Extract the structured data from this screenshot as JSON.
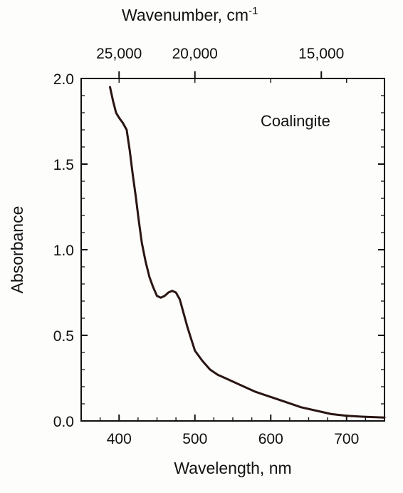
{
  "chart_data": {
    "type": "line",
    "title": "",
    "xlabel": "Wavelength, nm",
    "ylabel": "Absorbance",
    "x2label": "Wavenumber, cm",
    "x2label_superscript": "-1",
    "annotation": "Coalingite",
    "xlim": [
      350,
      750
    ],
    "ylim": [
      0.0,
      2.0
    ],
    "x_ticks": [
      400,
      500,
      600,
      700
    ],
    "x_tick_labels": [
      "400",
      "500",
      "600",
      "700"
    ],
    "y_ticks": [
      0.0,
      0.5,
      1.0,
      1.5,
      2.0
    ],
    "y_tick_labels": [
      "0.0",
      "0.5",
      "1.0",
      "1.5",
      "2.0"
    ],
    "x2_ticks_wavenumber": [
      25000,
      20000,
      15000
    ],
    "x2_tick_labels": [
      "25,000",
      "20,000",
      "15,000"
    ],
    "grid": false,
    "series": [
      {
        "x": [
          388,
          392,
          396,
          400,
          405,
          410,
          414,
          418,
          422,
          426,
          430,
          435,
          440,
          445,
          450,
          455,
          460,
          465,
          470,
          475,
          480,
          485,
          490,
          495,
          500,
          510,
          520,
          530,
          540,
          560,
          580,
          600,
          620,
          640,
          660,
          680,
          700,
          720,
          750
        ],
        "y": [
          1.95,
          1.87,
          1.8,
          1.77,
          1.74,
          1.7,
          1.58,
          1.44,
          1.31,
          1.17,
          1.04,
          0.93,
          0.84,
          0.78,
          0.73,
          0.72,
          0.73,
          0.75,
          0.76,
          0.75,
          0.71,
          0.63,
          0.55,
          0.48,
          0.41,
          0.35,
          0.3,
          0.27,
          0.25,
          0.21,
          0.17,
          0.14,
          0.11,
          0.08,
          0.06,
          0.04,
          0.03,
          0.025,
          0.02
        ]
      }
    ]
  }
}
